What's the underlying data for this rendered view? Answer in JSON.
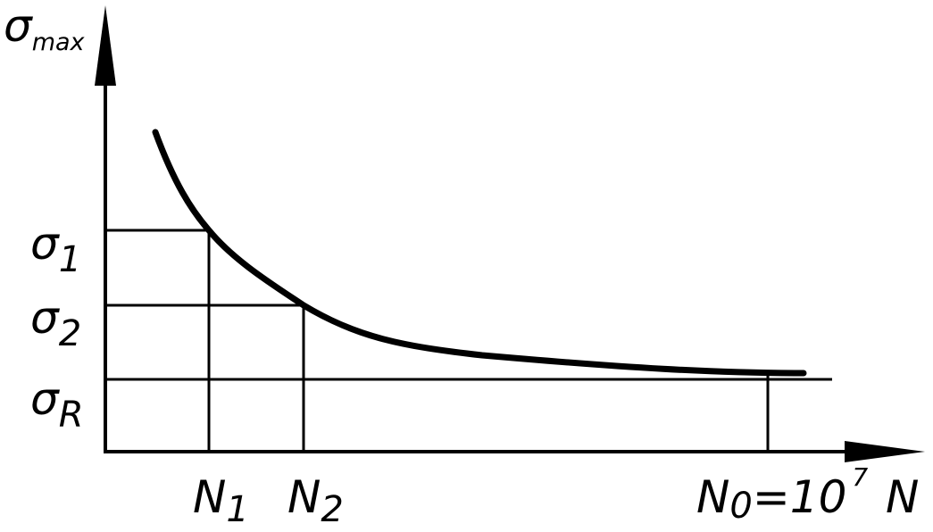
{
  "diagram": {
    "y_axis": {
      "symbol": "σ",
      "subscript": "max"
    },
    "x_axis": {
      "symbol": "N"
    },
    "stress_levels": [
      {
        "symbol": "σ",
        "subscript": "1"
      },
      {
        "symbol": "σ",
        "subscript": "2"
      },
      {
        "symbol": "σ",
        "subscript": "R"
      }
    ],
    "cycle_marks": [
      {
        "symbol": "N",
        "subscript": "1"
      },
      {
        "symbol": "N",
        "subscript": "2"
      }
    ],
    "limit_mark": {
      "symbol": "N",
      "subscript": "0",
      "equals": "=10",
      "exponent": "7"
    },
    "colors": {
      "ink": "#000000",
      "background": "#ffffff"
    }
  }
}
